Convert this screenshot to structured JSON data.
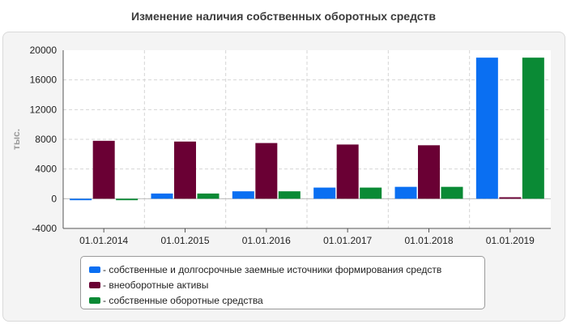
{
  "chart_data": {
    "type": "bar",
    "title": "Изменение наличия собственных оборотных средств",
    "ylabel": "тыс.",
    "xlabel": "",
    "ylim": [
      -4000,
      20000
    ],
    "yticks": [
      "-4000",
      "0",
      "4000",
      "8000",
      "12000",
      "16000",
      "20000"
    ],
    "ytick_values": [
      -4000,
      0,
      4000,
      8000,
      12000,
      16000,
      20000
    ],
    "grid": true,
    "legend_position": "bottom",
    "categories": [
      "01.01.2014",
      "01.01.2015",
      "01.01.2016",
      "01.01.2017",
      "01.01.2018",
      "01.01.2019"
    ],
    "series": [
      {
        "name": "- собственные и долгосрочные заемные источники формирования средств",
        "color": "#0a6ff2",
        "values": [
          -200,
          700,
          1000,
          1500,
          1600,
          19000
        ]
      },
      {
        "name": "- внеоборотные активы",
        "color": "#6a0034",
        "values": [
          7800,
          7700,
          7500,
          7300,
          7200,
          200
        ]
      },
      {
        "name": "- собственные оборотные средства",
        "color": "#0a8a35",
        "values": [
          -200,
          700,
          1000,
          1500,
          1600,
          19000
        ]
      }
    ]
  }
}
